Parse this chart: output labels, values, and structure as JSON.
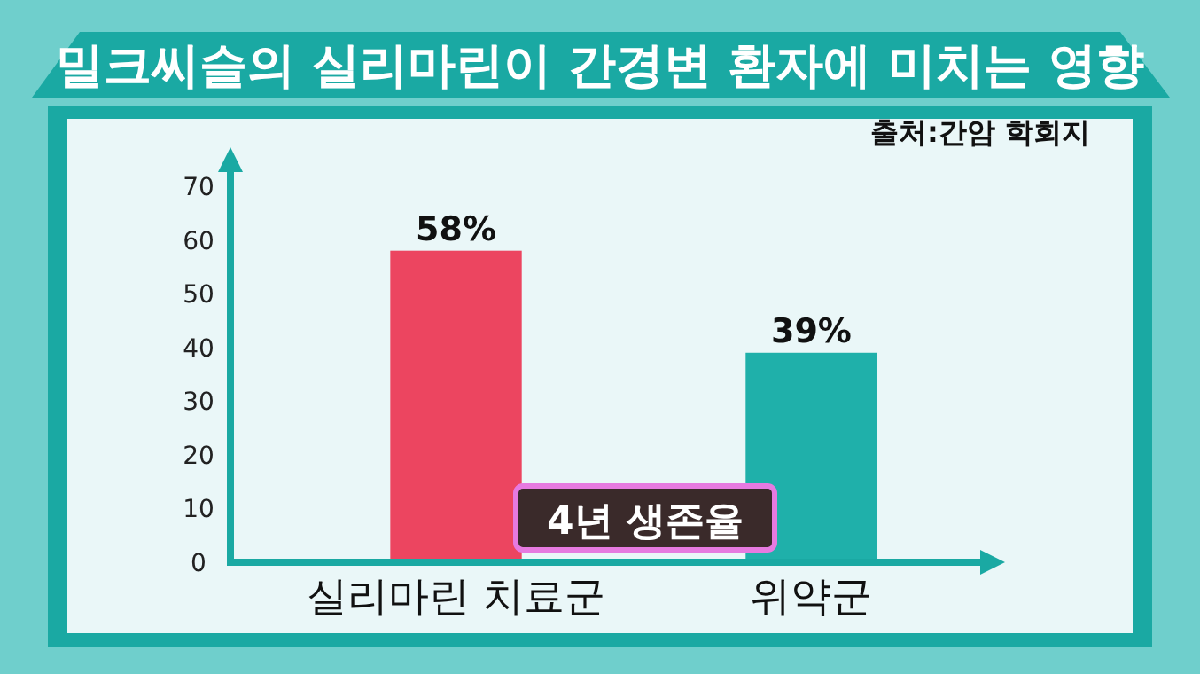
{
  "chart_data": {
    "type": "bar",
    "title": "밀크씨슬의 실리마린이 간경변 환자에 미치는 영향",
    "xlabel": "4년 생존율",
    "annotations": [
      "출처:간암 학회지"
    ],
    "categories": [
      "실리마린 치료군",
      "위약군"
    ],
    "values": [
      58,
      39
    ],
    "colors": [
      "#ec4560",
      "#1fb0aa"
    ],
    "value_labels": [
      "58%",
      "39%"
    ],
    "ylim": [
      0,
      70
    ],
    "yticks": [
      0,
      10,
      20,
      30,
      40,
      50,
      60,
      70
    ],
    "grid": false
  }
}
